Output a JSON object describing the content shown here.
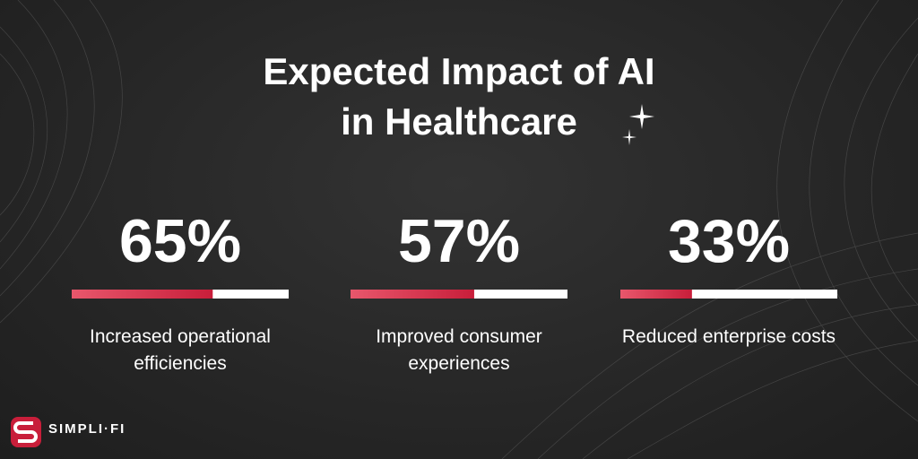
{
  "chart_data": {
    "type": "progress",
    "title": "Expected Impact of AI in Healthcare",
    "categories": [
      "Increased operational efficiencies",
      "Improved consumer experiences",
      "Reduced enterprise costs"
    ],
    "values": [
      65,
      57,
      33
    ],
    "value_labels": [
      "65%",
      "57%",
      "33%"
    ],
    "xlim": [
      0,
      100
    ],
    "color": "#c81e3a",
    "track_color": "#ffffff"
  },
  "brand": "SIMPLI·FI"
}
